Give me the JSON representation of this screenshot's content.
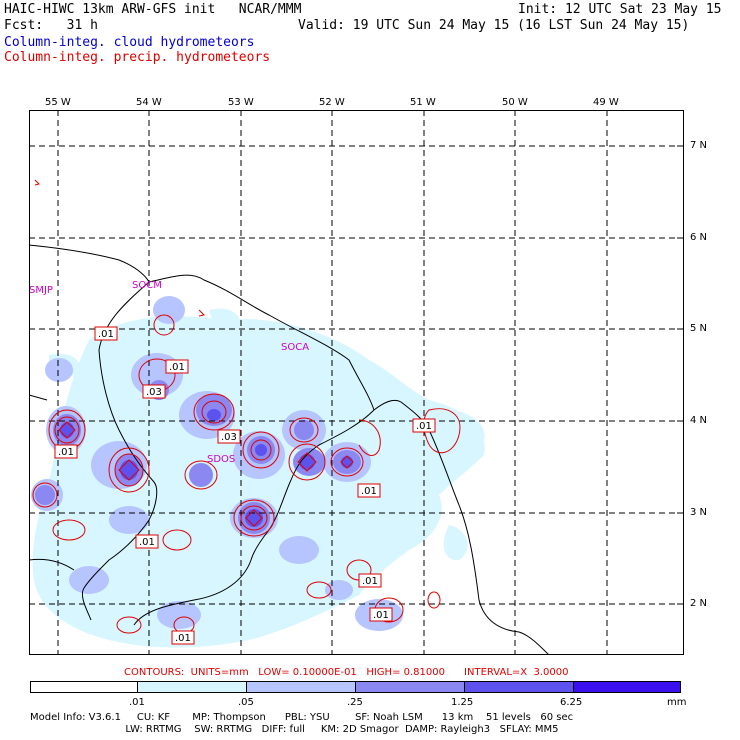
{
  "header": {
    "title_left": "HAIC-HIWC 13km ARW-GFS init   NCAR/MMM",
    "init": "Init: 12 UTC Sat 23 May 15",
    "fcst": "Fcst:   31 h",
    "valid": "Valid: 19 UTC Sun 24 May 15 (16 LST Sun 24 May 15)",
    "field1": "Column-integ. cloud hydrometeors",
    "field2": "Column-integ. precip. hydrometeors"
  },
  "map": {
    "lon_labels": [
      "55 W",
      "54 W",
      "53 W",
      "52 W",
      "51 W",
      "50 W",
      "49 W"
    ],
    "lat_labels": [
      "7 N",
      "6 N",
      "5 N",
      "4 N",
      "3 N",
      "2 N"
    ],
    "stations": [
      "SMJP",
      "SOCM",
      "SOCA",
      "SDOS"
    ],
    "contour_labels": [
      ".01",
      ".01",
      ".03",
      ".01",
      ".03",
      ".01",
      ".01",
      ".01",
      ".01",
      ".01",
      ".01"
    ]
  },
  "legend": {
    "contours": "CONTOURS:  UNITS=mm   LOW= 0.10000E-01   HIGH= 0.81000      INTERVAL=X  3.0000",
    "ticks": [
      ".01",
      ".05",
      ".25",
      "1.25",
      "6.25",
      "mm"
    ],
    "colors": [
      "#ffffff",
      "#d8f6ff",
      "#b6c4ff",
      "#8b88f2",
      "#5e52ee",
      "#3a10ee"
    ]
  },
  "model_info": {
    "line1": "Model Info: V3.6.1     CU: KF       MP: Thompson      PBL: YSU        SF: Noah LSM      13 km    51 levels   60 sec",
    "line2": "                              LW: RRTMG    SW: RRTMG   DIFF: full     KM: 2D Smagor  DAMP: Rayleigh3   SFLAY: MM5"
  }
}
